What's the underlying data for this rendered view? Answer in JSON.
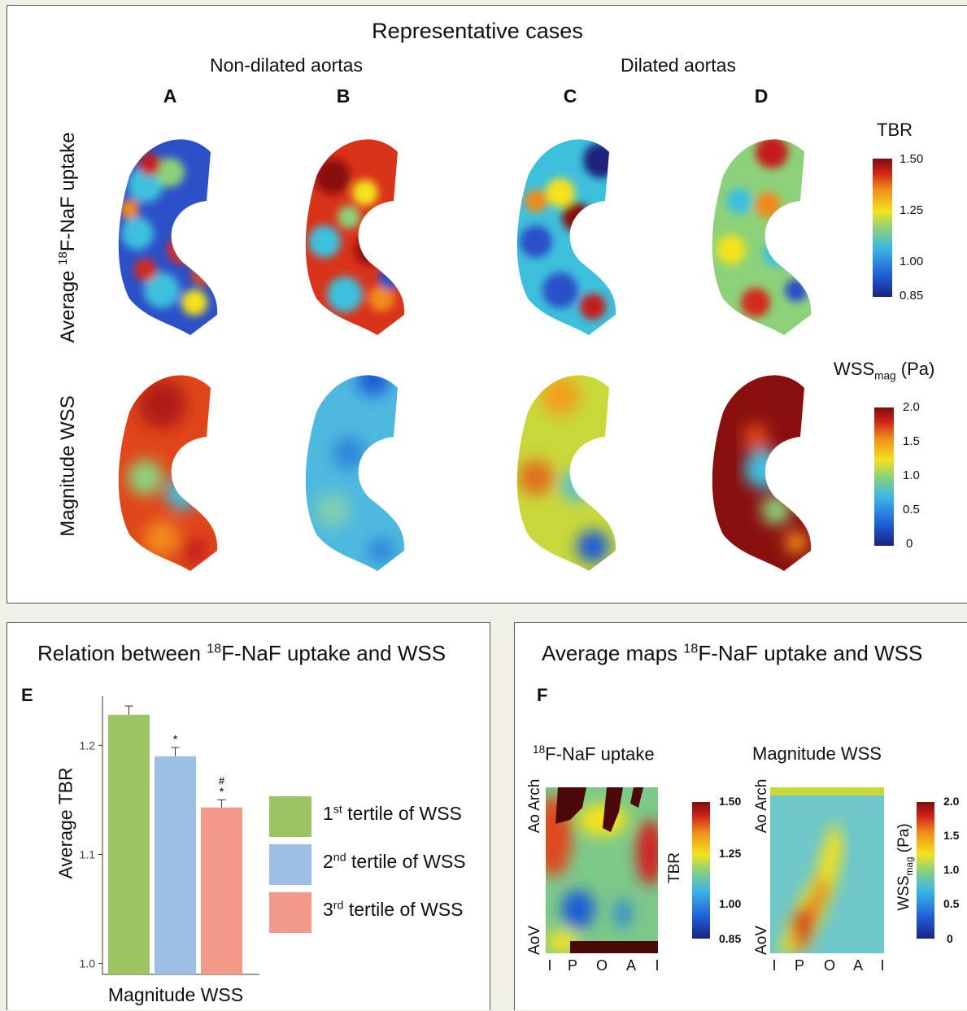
{
  "top": {
    "title": "Representative cases",
    "group_non_dilated": "Non-dilated aortas",
    "group_dilated": "Dilated aortas",
    "case_letters": [
      "A",
      "B",
      "C",
      "D"
    ],
    "row1_label_pre": "Average ",
    "row1_label_sup": "18",
    "row1_label_post": "F-NaF uptake",
    "row2_label": "Magnitude WSS",
    "tbr_legend": {
      "title": "TBR",
      "ticks": [
        "1.50",
        "1.25",
        "1.00",
        "0.85"
      ]
    },
    "wss_legend": {
      "title_main": "WSS",
      "title_sub": "mag",
      "title_unit": " (Pa)",
      "ticks": [
        "2.0",
        "1.5",
        "1.0",
        "0.5",
        "0"
      ]
    }
  },
  "panel_e": {
    "title_pre": "Relation between ",
    "title_sup": "18",
    "title_post": "F-NaF uptake and WSS",
    "letter": "E",
    "legend": [
      {
        "num": "1",
        "sup": "st",
        "text": " tertile of WSS",
        "color": "#9dc463"
      },
      {
        "num": "2",
        "sup": "nd",
        "text": " tertile of WSS",
        "color": "#9dbfe3"
      },
      {
        "num": "3",
        "sup": "rd",
        "text": " tertile of WSS",
        "color": "#f3998a"
      }
    ]
  },
  "panel_f": {
    "title_pre": "Average maps ",
    "title_sup": "18",
    "title_post": "F-NaF uptake and WSS",
    "letter": "F",
    "map1_title_sup": "18",
    "map1_title_post": "F-NaF uptake",
    "map2_title": "Magnitude WSS",
    "y_top": "Ao Arch",
    "y_bottom": "AoV",
    "x_ticks": [
      "I",
      "P",
      "O",
      "A",
      "I"
    ],
    "tbr_label": "TBR",
    "tbr_ticks": [
      "1.50",
      "1.25",
      "1.00",
      "0.85"
    ],
    "wss_label_main": "WSS",
    "wss_label_sub": "mag",
    "wss_label_unit": " (Pa)",
    "wss_ticks": [
      "2.0",
      "1.5",
      "1.0",
      "0.5",
      "0"
    ]
  },
  "chart_data": {
    "type": "bar",
    "categories": [
      "1st tertile of WSS",
      "2nd tertile of WSS",
      "3rd tertile of WSS"
    ],
    "values": [
      1.228,
      1.19,
      1.143
    ],
    "errors": [
      0.008,
      0.008,
      0.007
    ],
    "significance": [
      "",
      "*",
      "#*"
    ],
    "colors": [
      "#9dc463",
      "#9dbfe3",
      "#f3998a"
    ],
    "xlabel": "Magnitude WSS",
    "ylabel": "Average TBR",
    "ylim": [
      0.99,
      1.245
    ],
    "yticks": [
      1.0,
      1.1,
      1.2
    ],
    "ytick_labels": [
      "1.0",
      "1.1",
      "1.2"
    ]
  },
  "colors": {
    "jet": [
      "#1a1f8a",
      "#1f4fd0",
      "#3fb0e0",
      "#7dcf6a",
      "#f4e21a",
      "#f08a1a",
      "#d21f1a",
      "#6e0d0d"
    ]
  }
}
